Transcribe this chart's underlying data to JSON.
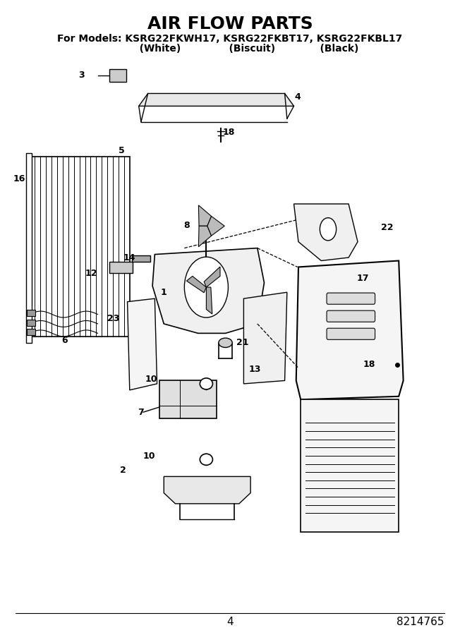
{
  "title": "AIR FLOW PARTS",
  "subtitle_line1": "For Models: KSRG22FKWH17, KSRG22FKBT17, KSRG22FKBL17",
  "subtitle_line2": "           (White)              (Biscuit)             (Black)",
  "page_number": "4",
  "doc_number": "8214765",
  "bg_color": "#ffffff",
  "fg_color": "#000000",
  "figsize": [
    6.52,
    9.0
  ],
  "dpi": 100
}
